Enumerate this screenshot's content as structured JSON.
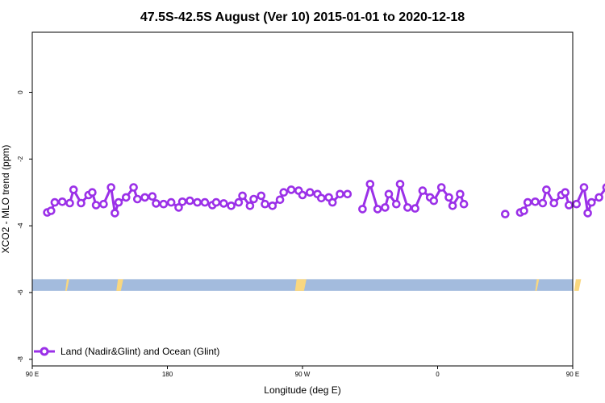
{
  "chart_data": {
    "type": "line",
    "title": "47.5S-42.5S August (Ver 10)   2015-01-01 to 2020-12-18",
    "xlabel": "Longitude (deg E)",
    "ylabel": "XCO2 - MLO trend (ppm)",
    "xlim": [
      90,
      450
    ],
    "ylim": [
      -8.2,
      1.8
    ],
    "x_ticks": [
      {
        "value": 90,
        "label": "90 E"
      },
      {
        "value": 180,
        "label": "180"
      },
      {
        "value": 270,
        "label": "90 W"
      },
      {
        "value": 360,
        "label": "0"
      },
      {
        "value": 450,
        "label": "90 E"
      },
      {
        "value": 540,
        "label": "180"
      }
    ],
    "y_ticks": [
      {
        "value": 0,
        "label": "0"
      },
      {
        "value": -2,
        "label": "-2"
      },
      {
        "value": -4,
        "label": "-4"
      },
      {
        "value": -6,
        "label": "-6"
      },
      {
        "value": -8,
        "label": "-8"
      }
    ],
    "legend": {
      "position": "bottom-left"
    },
    "series": [
      {
        "name": "Land (Nadir&Glint) and Ocean (Glint)",
        "color": "#9b30e8",
        "segments": [
          [
            [
              100,
              -3.6
            ],
            [
              102.5,
              -3.55
            ],
            [
              105,
              -3.3
            ],
            [
              110,
              -3.28
            ],
            [
              115,
              -3.32
            ],
            [
              117.5,
              -2.92
            ],
            [
              122.5,
              -3.32
            ],
            [
              127.5,
              -3.08
            ],
            [
              130,
              -3.0
            ],
            [
              132.5,
              -3.38
            ],
            [
              137.5,
              -3.35
            ],
            [
              142.5,
              -2.85
            ],
            [
              145,
              -3.62
            ],
            [
              147.5,
              -3.3
            ],
            [
              152.5,
              -3.15
            ],
            [
              157.5,
              -2.85
            ],
            [
              160,
              -3.2
            ],
            [
              165,
              -3.15
            ],
            [
              170,
              -3.12
            ],
            [
              172.5,
              -3.33
            ],
            [
              177.5,
              -3.35
            ],
            [
              182.5,
              -3.3
            ],
            [
              187.5,
              -3.45
            ],
            [
              190,
              -3.28
            ],
            [
              195,
              -3.25
            ],
            [
              200,
              -3.3
            ],
            [
              205,
              -3.3
            ],
            [
              210,
              -3.38
            ],
            [
              212.5,
              -3.3
            ],
            [
              217.5,
              -3.33
            ],
            [
              222.5,
              -3.4
            ],
            [
              227.5,
              -3.3
            ],
            [
              230,
              -3.1
            ],
            [
              235,
              -3.4
            ],
            [
              237.5,
              -3.2
            ],
            [
              242.5,
              -3.1
            ],
            [
              245,
              -3.35
            ],
            [
              250,
              -3.4
            ],
            [
              255,
              -3.22
            ],
            [
              257.5,
              -3.0
            ],
            [
              262.5,
              -2.92
            ],
            [
              267.5,
              -2.95
            ],
            [
              270,
              -3.08
            ],
            [
              275,
              -3.0
            ],
            [
              280,
              -3.05
            ],
            [
              282.5,
              -3.17
            ],
            [
              287.5,
              -3.15
            ],
            [
              290,
              -3.3
            ],
            [
              295,
              -3.05
            ],
            [
              300,
              -3.05
            ]
          ],
          [
            [
              310,
              -3.5
            ],
            [
              315,
              -2.75
            ],
            [
              320,
              -3.5
            ],
            [
              325,
              -3.45
            ],
            [
              327.5,
              -3.05
            ],
            [
              332.5,
              -3.35
            ],
            [
              335,
              -2.75
            ],
            [
              340,
              -3.45
            ],
            [
              345,
              -3.48
            ],
            [
              350,
              -2.95
            ],
            [
              355,
              -3.15
            ],
            [
              357.5,
              -3.25
            ],
            [
              362.5,
              -2.85
            ],
            [
              367.5,
              -3.15
            ],
            [
              370,
              -3.4
            ],
            [
              375,
              -3.05
            ],
            [
              377.5,
              -3.35
            ]
          ],
          [
            [
              405,
              -3.65
            ]
          ],
          [
            [
              415,
              -3.6
            ],
            [
              417.5,
              -3.55
            ],
            [
              420,
              -3.3
            ],
            [
              425,
              -3.28
            ],
            [
              430,
              -3.32
            ],
            [
              432.5,
              -2.92
            ],
            [
              437.5,
              -3.32
            ],
            [
              442.5,
              -3.08
            ],
            [
              445,
              -3.0
            ],
            [
              447.5,
              -3.38
            ],
            [
              452.5,
              -3.35
            ],
            [
              457.5,
              -2.85
            ],
            [
              460,
              -3.62
            ],
            [
              462.5,
              -3.3
            ],
            [
              467.5,
              -3.15
            ],
            [
              472.5,
              -2.85
            ],
            [
              475,
              -3.2
            ]
          ]
        ]
      }
    ],
    "background_band": {
      "y_range": [
        -5.6,
        -5.95
      ],
      "color": "#a3bbdd",
      "land_color": "#f9d77f",
      "land_marks": [
        {
          "x": 112,
          "x_end": 113
        },
        {
          "x": 146,
          "x_end": 149
        },
        {
          "x": 265,
          "x_end": 271
        },
        {
          "x": 425,
          "x_end": 426
        },
        {
          "x": 451,
          "x_end": 454
        }
      ]
    }
  }
}
